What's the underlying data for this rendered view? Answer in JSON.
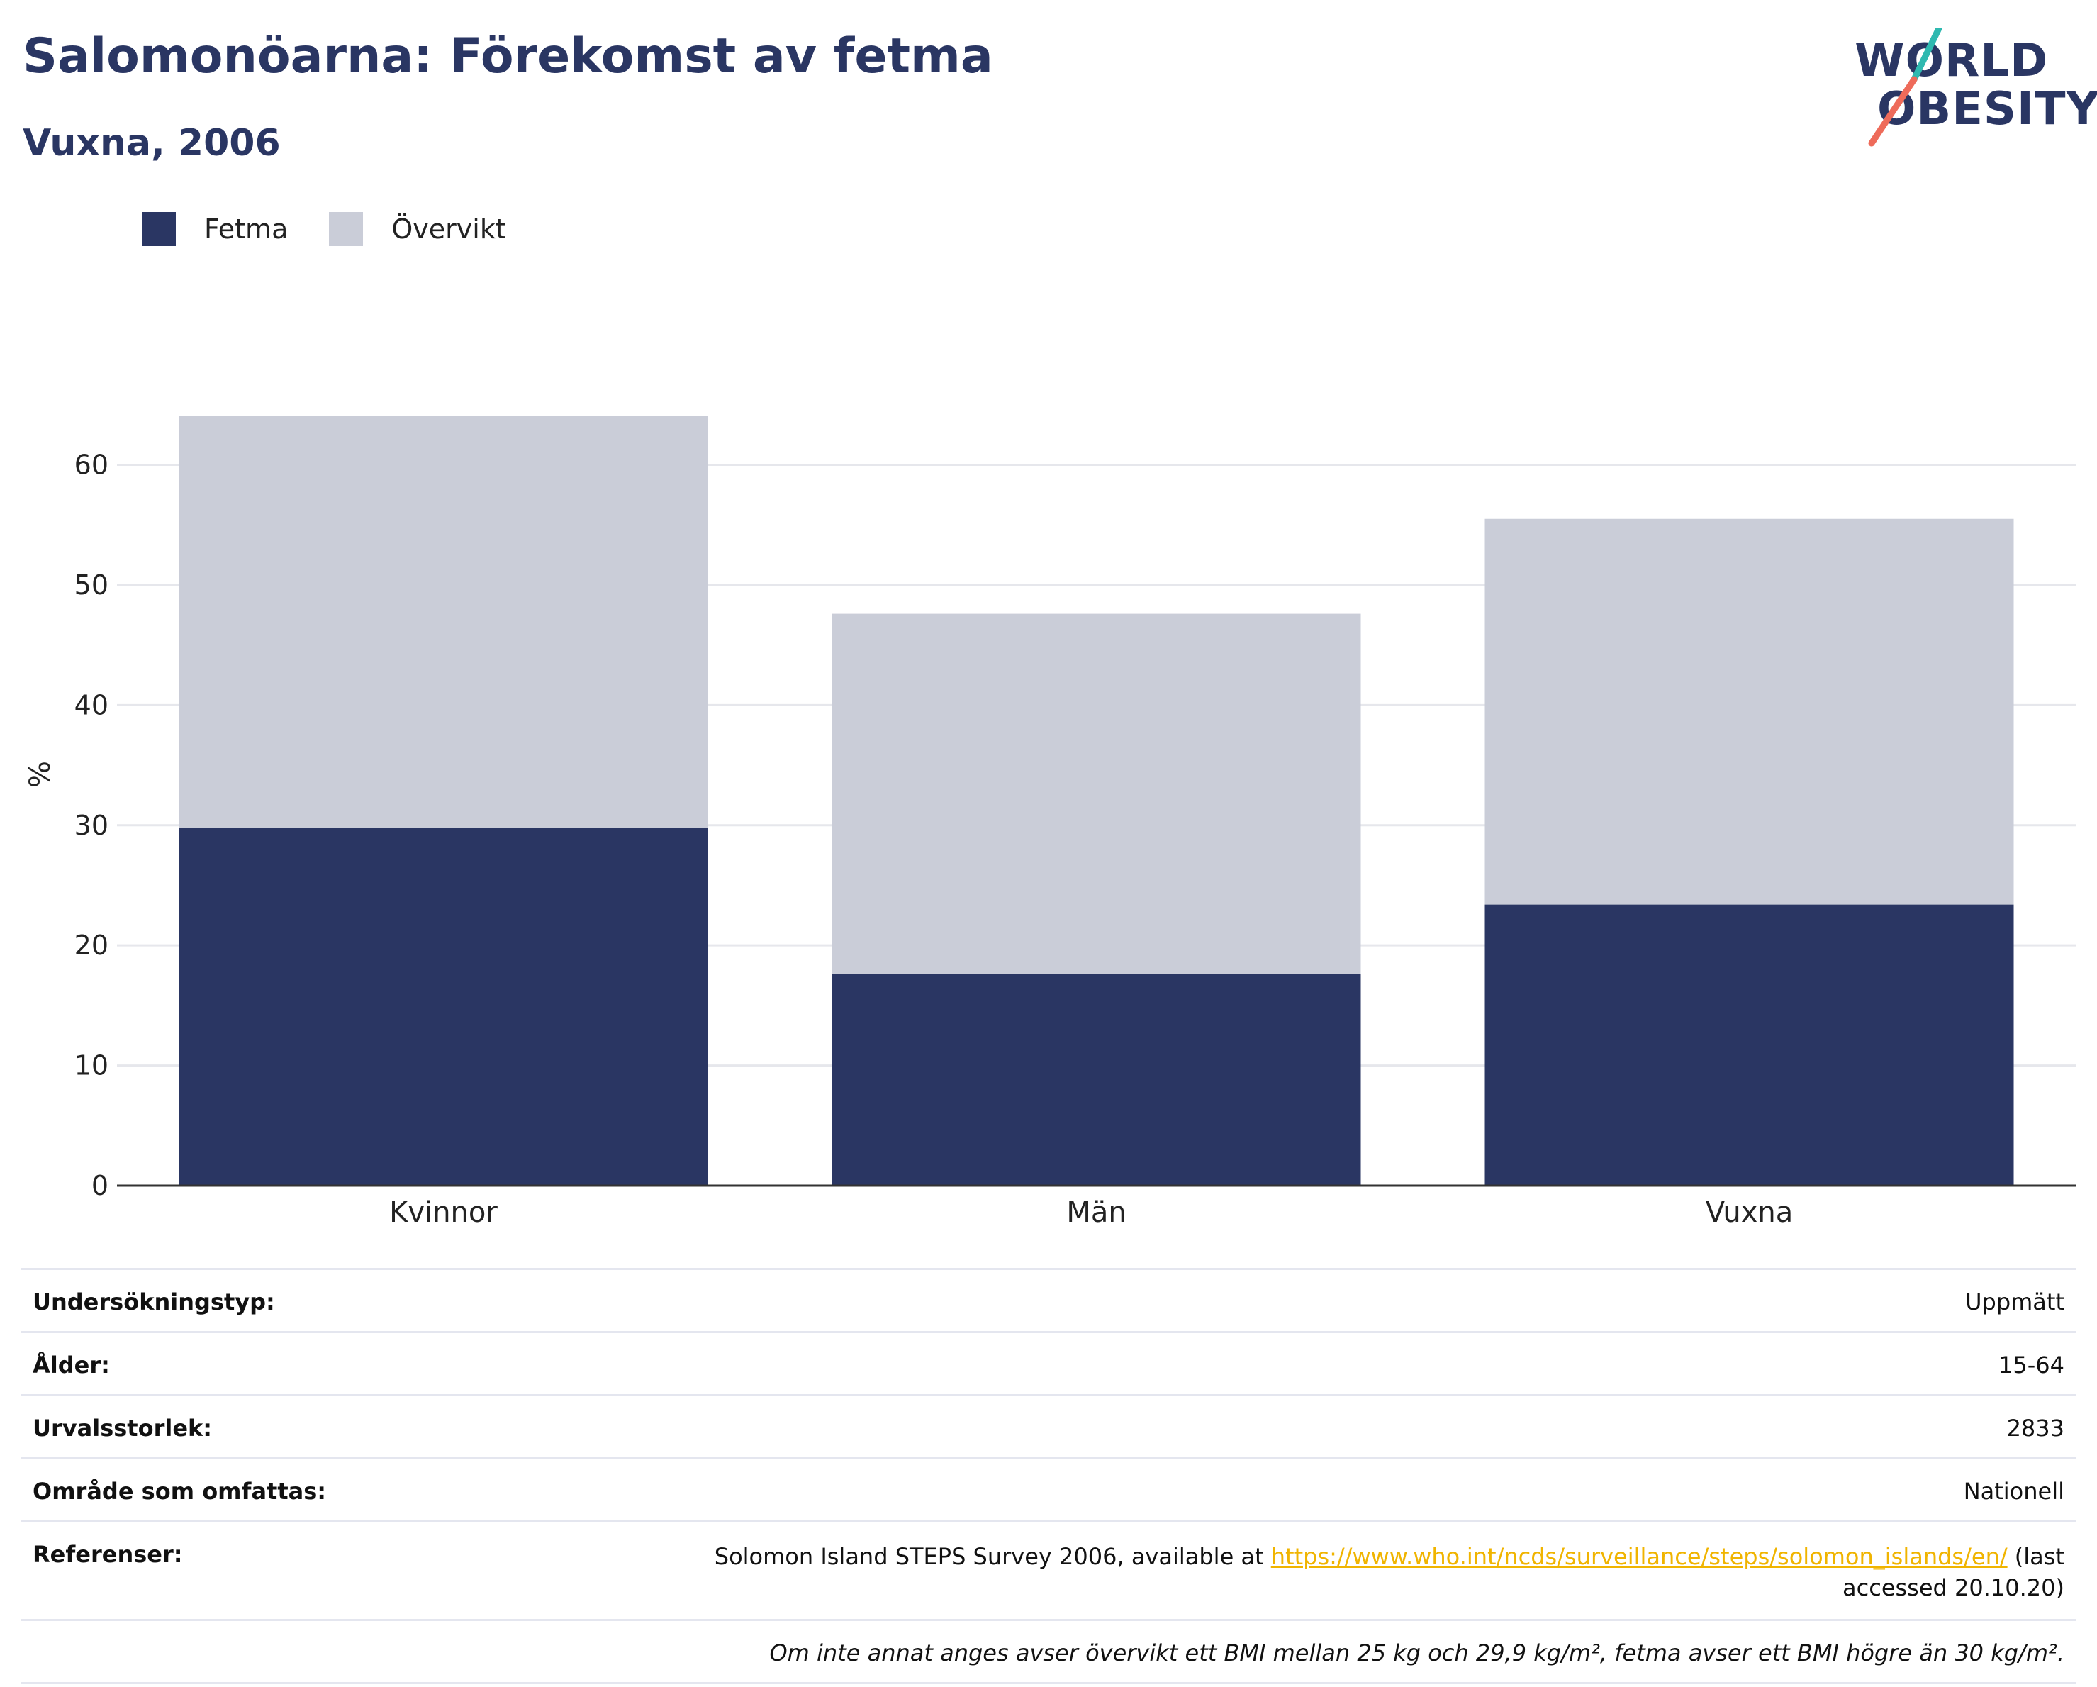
{
  "title": "Salomonöarna: Förekomst av fetma",
  "subtitle": "Vuxna, 2006",
  "logo": {
    "line1": "WORLD",
    "line2": "OBESITY"
  },
  "legend": [
    {
      "label": "Fetma",
      "color": "#2a3663"
    },
    {
      "label": "Övervikt",
      "color": "#cacdd8"
    }
  ],
  "chart_data": {
    "type": "bar",
    "stacked": true,
    "categories": [
      "Kvinnor",
      "Män",
      "Vuxna"
    ],
    "series": [
      {
        "name": "Fetma",
        "values": [
          29.8,
          17.6,
          23.4
        ],
        "color": "#2a3663"
      },
      {
        "name": "Övervikt",
        "values": [
          34.3,
          30.0,
          32.1
        ],
        "color": "#cacdd8"
      }
    ],
    "totals": [
      64.1,
      47.6,
      55.5
    ],
    "ylabel": "%",
    "ylim": [
      0,
      68
    ],
    "yticks": [
      0,
      10,
      20,
      30,
      40,
      50,
      60
    ],
    "grid": true
  },
  "info": {
    "survey_type": {
      "label": "Undersökningstyp:",
      "value": "Uppmätt"
    },
    "age": {
      "label": "Ålder:",
      "value": "15-64"
    },
    "sample_size": {
      "label": "Urvalsstorlek:",
      "value": "2833"
    },
    "area": {
      "label": "Område som omfattas:",
      "value": "Nationell"
    },
    "references": {
      "label": "Referenser:",
      "prefix": "Solomon Island STEPS Survey 2006, available at ",
      "link": "https://www.who.int/ncds/surveillance/steps/solomon_islands/en/",
      "suffix": " (last accessed 20.10.20)"
    },
    "note": "Om inte annat anges avser övervikt ett BMI mellan 25 kg och 29,9 kg/m², fetma avser ett BMI högre än 30 kg/m²."
  }
}
